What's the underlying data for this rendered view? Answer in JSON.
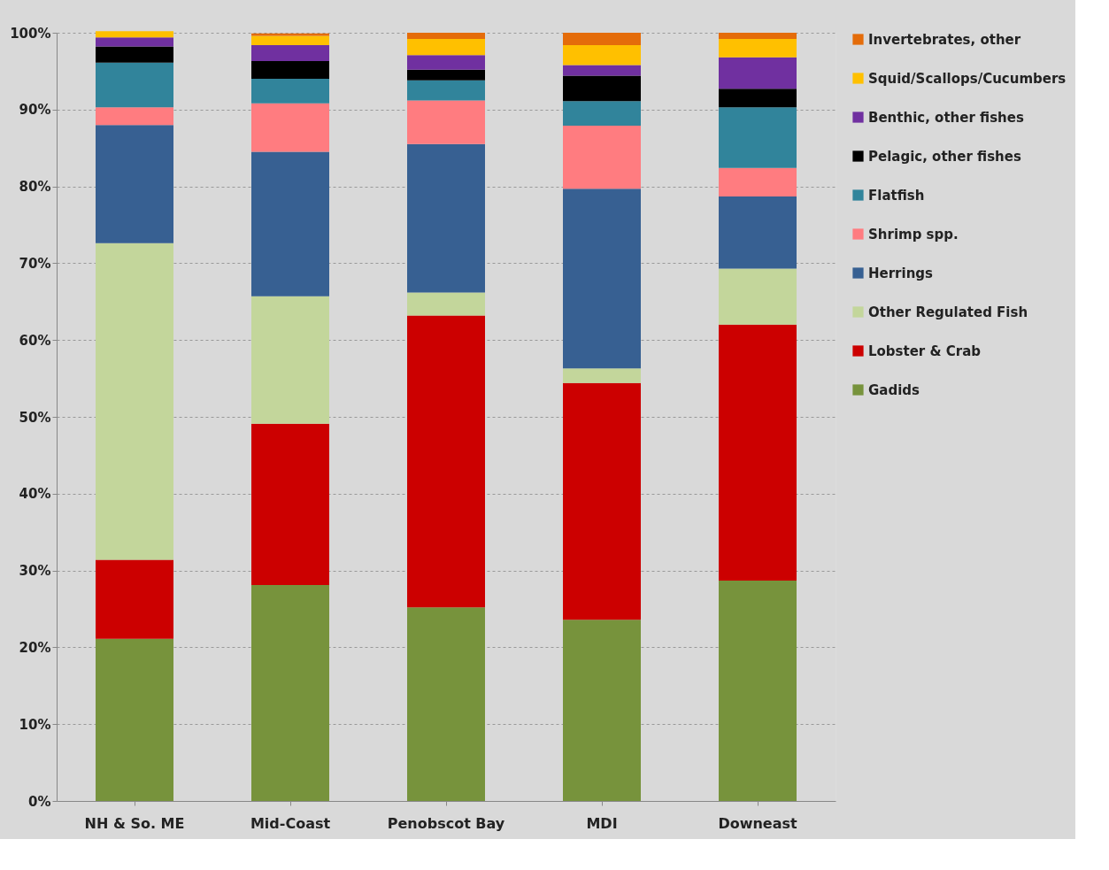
{
  "chart_data": {
    "type": "bar",
    "stacked": true,
    "categories": [
      "NH & So. ME",
      "Mid-Coast",
      "Penobscot Bay",
      "MDI",
      "Downeast"
    ],
    "series": [
      {
        "name": "Gadids",
        "color": "#77933c",
        "values": [
          21.1,
          28.1,
          25.2,
          23.6,
          28.7
        ]
      },
      {
        "name": "Lobster & Crab",
        "color": "#cc0000",
        "values": [
          10.3,
          21.0,
          38.0,
          30.8,
          33.3
        ]
      },
      {
        "name": "Other Regulated Fish",
        "color": "#c3d69b",
        "values": [
          41.2,
          16.6,
          3.0,
          1.9,
          7.3
        ]
      },
      {
        "name": "Herrings",
        "color": "#376092",
        "values": [
          15.4,
          18.8,
          19.3,
          23.4,
          9.4
        ]
      },
      {
        "name": "Shrimp spp.",
        "color": "#ff7c80",
        "values": [
          2.3,
          6.3,
          5.7,
          8.2,
          3.7
        ]
      },
      {
        "name": "Flatfish",
        "color": "#31849b",
        "values": [
          5.8,
          3.2,
          2.6,
          3.2,
          7.9
        ]
      },
      {
        "name": "Pelagic, other fishes",
        "color": "#000000",
        "values": [
          2.1,
          2.3,
          1.4,
          3.3,
          2.4
        ]
      },
      {
        "name": "Benthic, other fishes",
        "color": "#7030a0",
        "values": [
          1.2,
          2.1,
          1.9,
          1.4,
          4.1
        ]
      },
      {
        "name": "Squid/Scallops/Cucumbers",
        "color": "#ffc000",
        "values": [
          0.8,
          1.2,
          2.1,
          2.6,
          2.4
        ]
      },
      {
        "name": "Invertebrates, other",
        "color": "#e46c0a",
        "values": [
          0.0,
          0.3,
          0.8,
          1.6,
          0.8
        ]
      }
    ],
    "ylim": [
      0,
      100
    ],
    "yticks": [
      {
        "value": 0,
        "label": "0%"
      },
      {
        "value": 10,
        "label": "10%"
      },
      {
        "value": 20,
        "label": "20%"
      },
      {
        "value": 30,
        "label": "30%"
      },
      {
        "value": 40,
        "label": "40%"
      },
      {
        "value": 50,
        "label": "50%"
      },
      {
        "value": 60,
        "label": "60%"
      },
      {
        "value": 70,
        "label": "70%"
      },
      {
        "value": 80,
        "label": "80%"
      },
      {
        "value": 90,
        "label": "90%"
      },
      {
        "value": 100,
        "label": "100%"
      }
    ],
    "grid": "y",
    "legend": "right"
  }
}
